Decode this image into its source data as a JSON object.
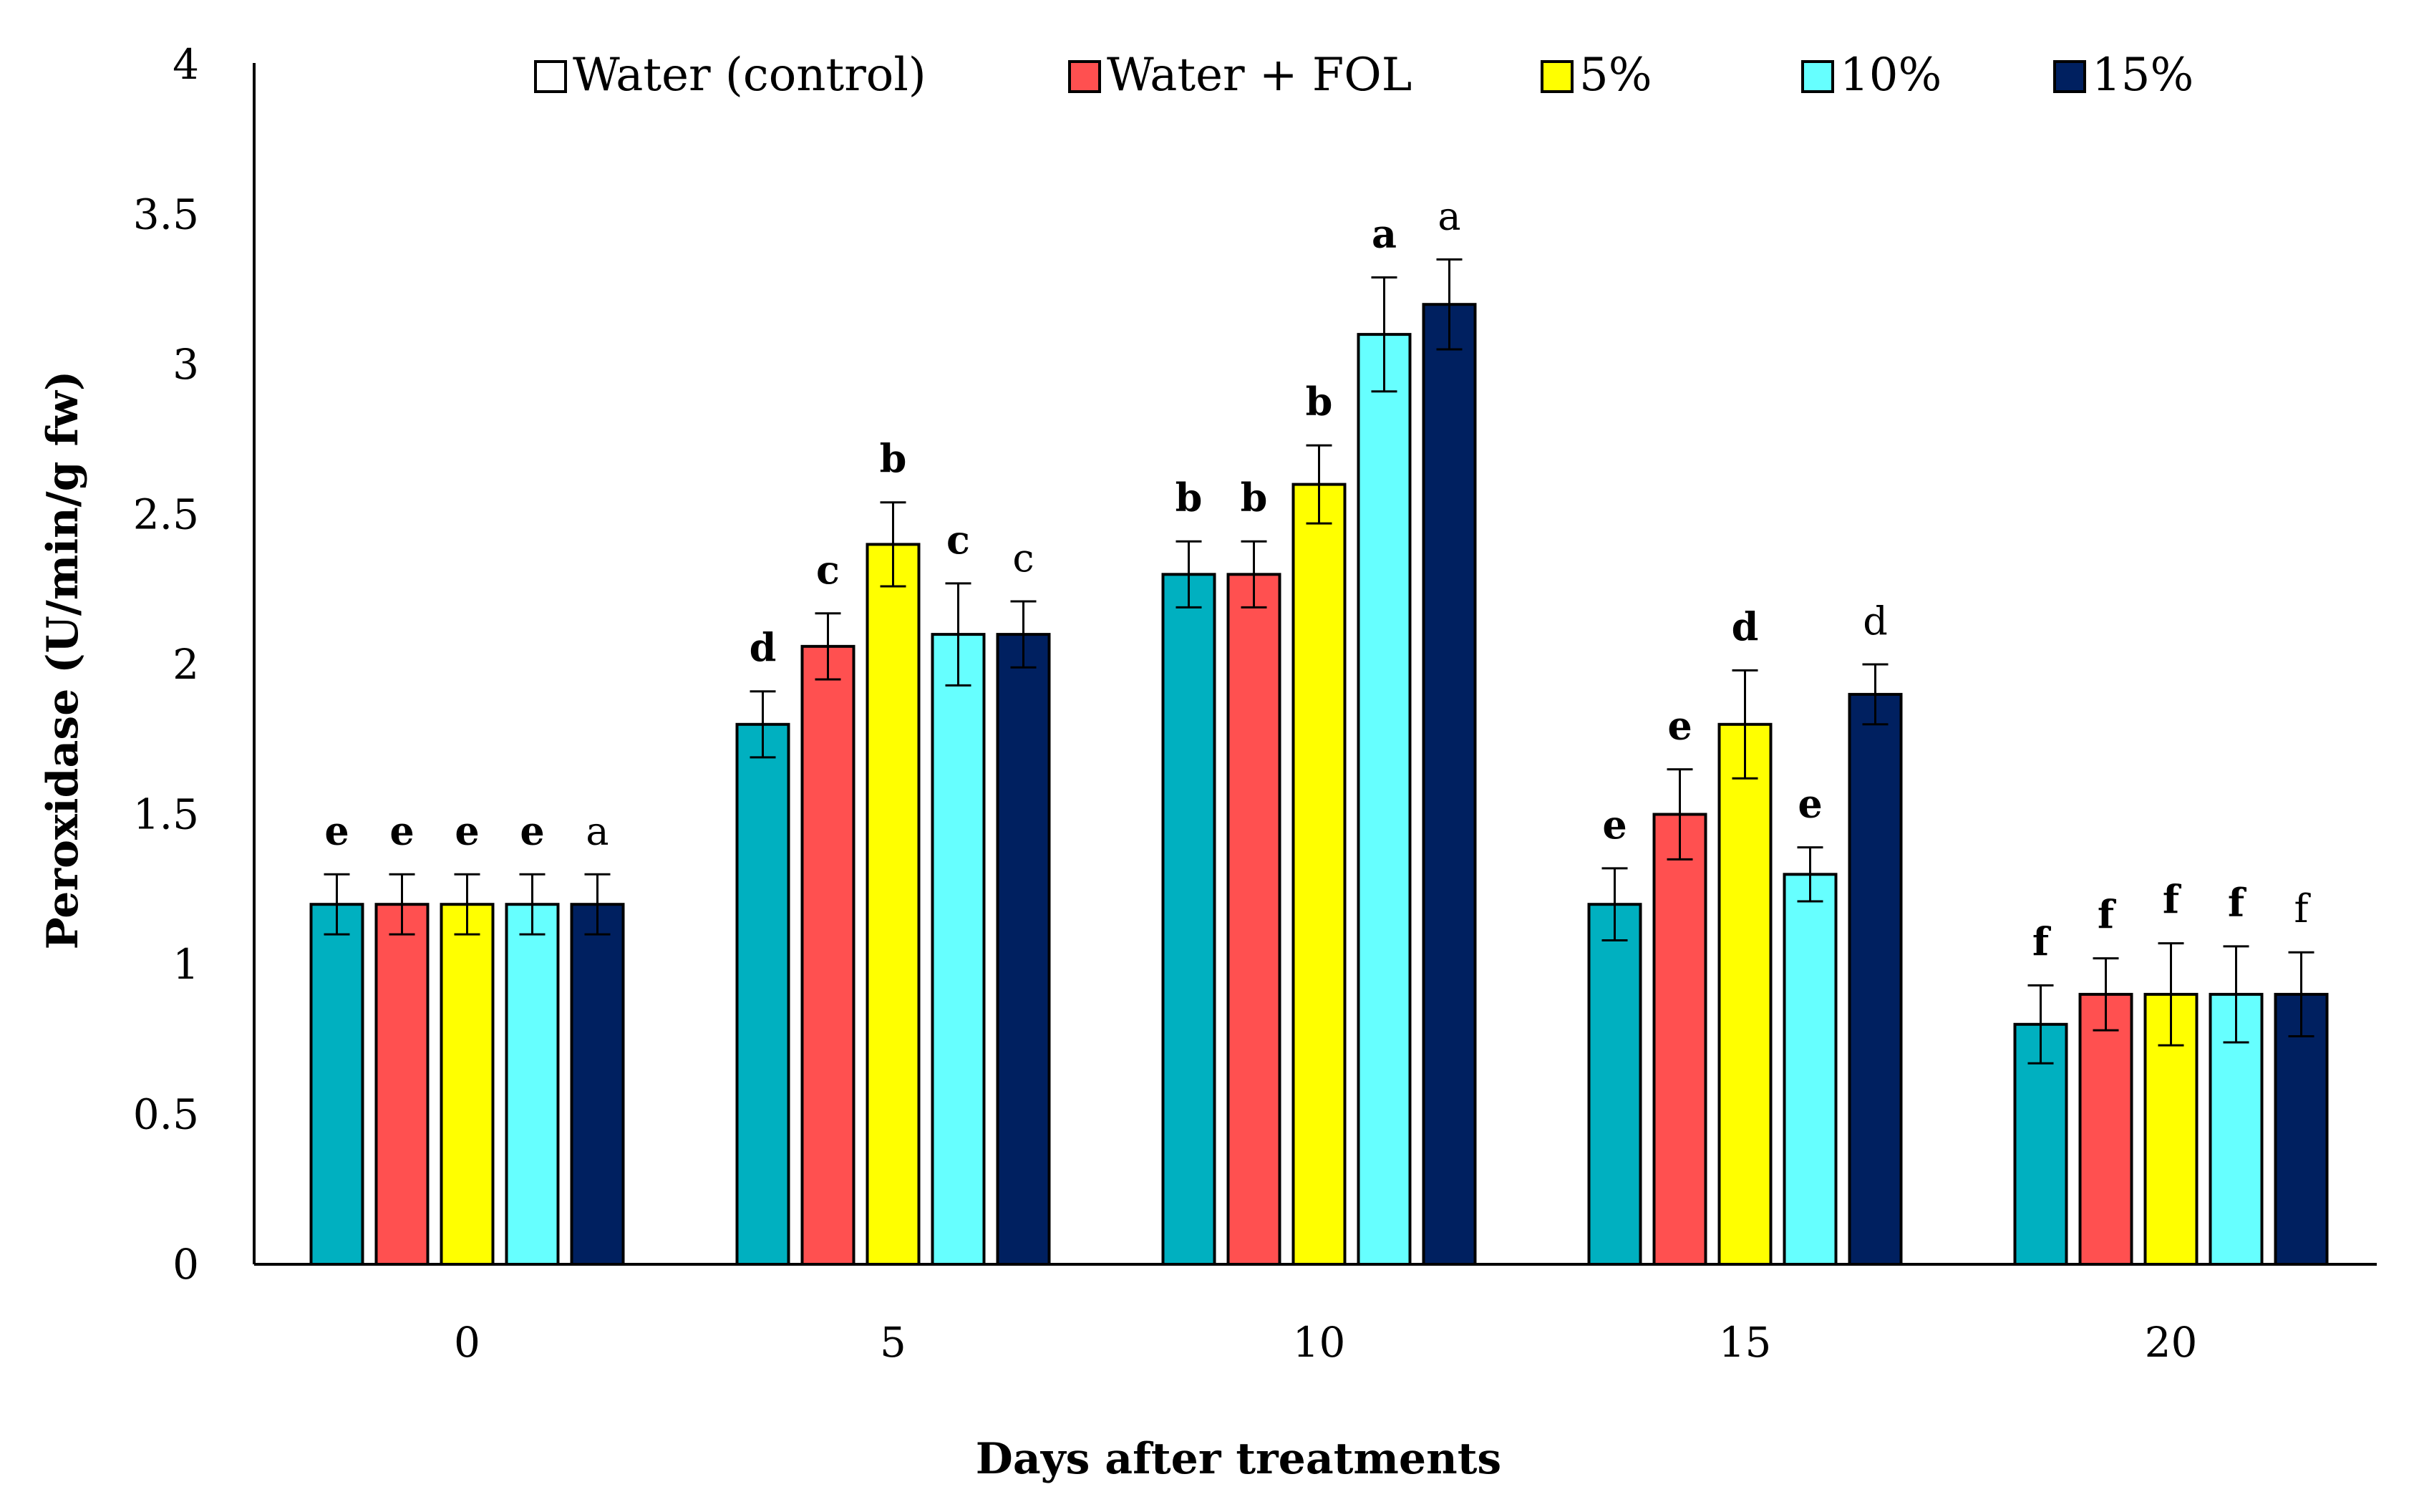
{
  "chart_data": {
    "type": "bar",
    "title": "",
    "xlabel": "Days after treatments",
    "ylabel": "Peroxidase (U/min/g fw)",
    "ylim": [
      0,
      4
    ],
    "yticks": [
      "0",
      "0.5",
      "1",
      "1.5",
      "2",
      "2.5",
      "3",
      "3.5",
      "4"
    ],
    "yticks_values": [
      0,
      0.5,
      1,
      1.5,
      2,
      2.5,
      3,
      3.5,
      4
    ],
    "categories": [
      "0",
      "5",
      "10",
      "15",
      "20"
    ],
    "grid": false,
    "legend_position": "top",
    "series": [
      {
        "name": "Water (control)",
        "color": "#00B0C0",
        "legend_color": "#FFFFFF",
        "values": [
          1.2,
          1.8,
          2.3,
          1.2,
          0.8
        ],
        "errors": [
          0.1,
          0.11,
          0.11,
          0.12,
          0.13
        ],
        "labels": [
          "e",
          "d",
          "b",
          "e",
          "f"
        ],
        "label_bold": [
          true,
          true,
          true,
          true,
          true
        ]
      },
      {
        "name": "Water + FOL",
        "color": "#FF5050",
        "legend_color": "#FF5050",
        "values": [
          1.2,
          2.06,
          2.3,
          1.5,
          0.9
        ],
        "errors": [
          0.1,
          0.11,
          0.11,
          0.15,
          0.12
        ],
        "labels": [
          "e",
          "c",
          "b",
          "e",
          "f"
        ],
        "label_bold": [
          true,
          true,
          true,
          true,
          true
        ]
      },
      {
        "name": "5%",
        "color": "#FFFF00",
        "legend_color": "#FFFF00",
        "values": [
          1.2,
          2.4,
          2.6,
          1.8,
          0.9
        ],
        "errors": [
          0.1,
          0.14,
          0.13,
          0.18,
          0.17
        ],
        "labels": [
          "e",
          "b",
          "b",
          "d",
          "f"
        ],
        "label_bold": [
          true,
          true,
          true,
          true,
          true
        ]
      },
      {
        "name": "10%",
        "color": "#66FFFF",
        "legend_color": "#66FFFF",
        "values": [
          1.2,
          2.1,
          3.1,
          1.3,
          0.9
        ],
        "errors": [
          0.1,
          0.17,
          0.19,
          0.09,
          0.16
        ],
        "labels": [
          "e",
          "c",
          "a",
          "e",
          "f"
        ],
        "label_bold": [
          true,
          true,
          true,
          true,
          true
        ]
      },
      {
        "name": "15%",
        "color": "#002060",
        "legend_color": "#002060",
        "values": [
          1.2,
          2.1,
          3.2,
          1.9,
          0.9
        ],
        "errors": [
          0.1,
          0.11,
          0.15,
          0.1,
          0.14
        ],
        "labels": [
          "a",
          "c",
          "a",
          "d",
          "f"
        ],
        "label_bold": [
          false,
          false,
          false,
          false,
          false
        ]
      }
    ]
  }
}
